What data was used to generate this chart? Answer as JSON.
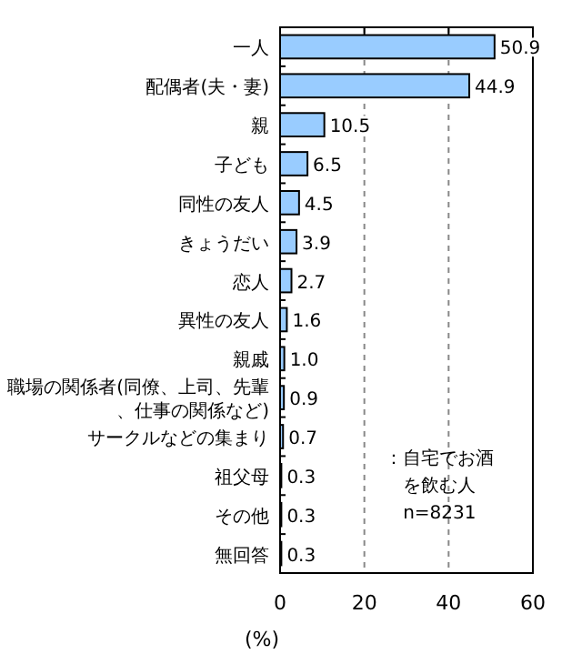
{
  "chart_data": {
    "type": "bar",
    "orientation": "horizontal",
    "categories": [
      "一人",
      "配偶者(夫・妻)",
      "親",
      "子ども",
      "同性の友人",
      "きょうだい",
      "恋人",
      "異性の友人",
      "親戚",
      "職場の関係者(同僚、上司、先輩、仕事の関係など)",
      "サークルなどの集まり",
      "祖父母",
      "その他",
      "無回答"
    ],
    "values": [
      50.9,
      44.9,
      10.5,
      6.5,
      4.5,
      3.9,
      2.7,
      1.6,
      1.0,
      0.9,
      0.7,
      0.3,
      0.3,
      0.3
    ],
    "value_labels": [
      "50.9",
      "44.9",
      "10.5",
      "6.5",
      "4.5",
      "3.9",
      "2.7",
      "1.6",
      "1.0",
      "0.9",
      "0.7",
      "0.3",
      "0.3",
      "0.3"
    ],
    "color": "#99ccff",
    "xlim": [
      0,
      60
    ],
    "xticks": [
      0,
      20,
      40,
      60
    ],
    "xlabel": "(%)",
    "grid": "x",
    "annotations": [
      "：自宅でお酒",
      "を飲む人",
      "n=8231"
    ]
  }
}
